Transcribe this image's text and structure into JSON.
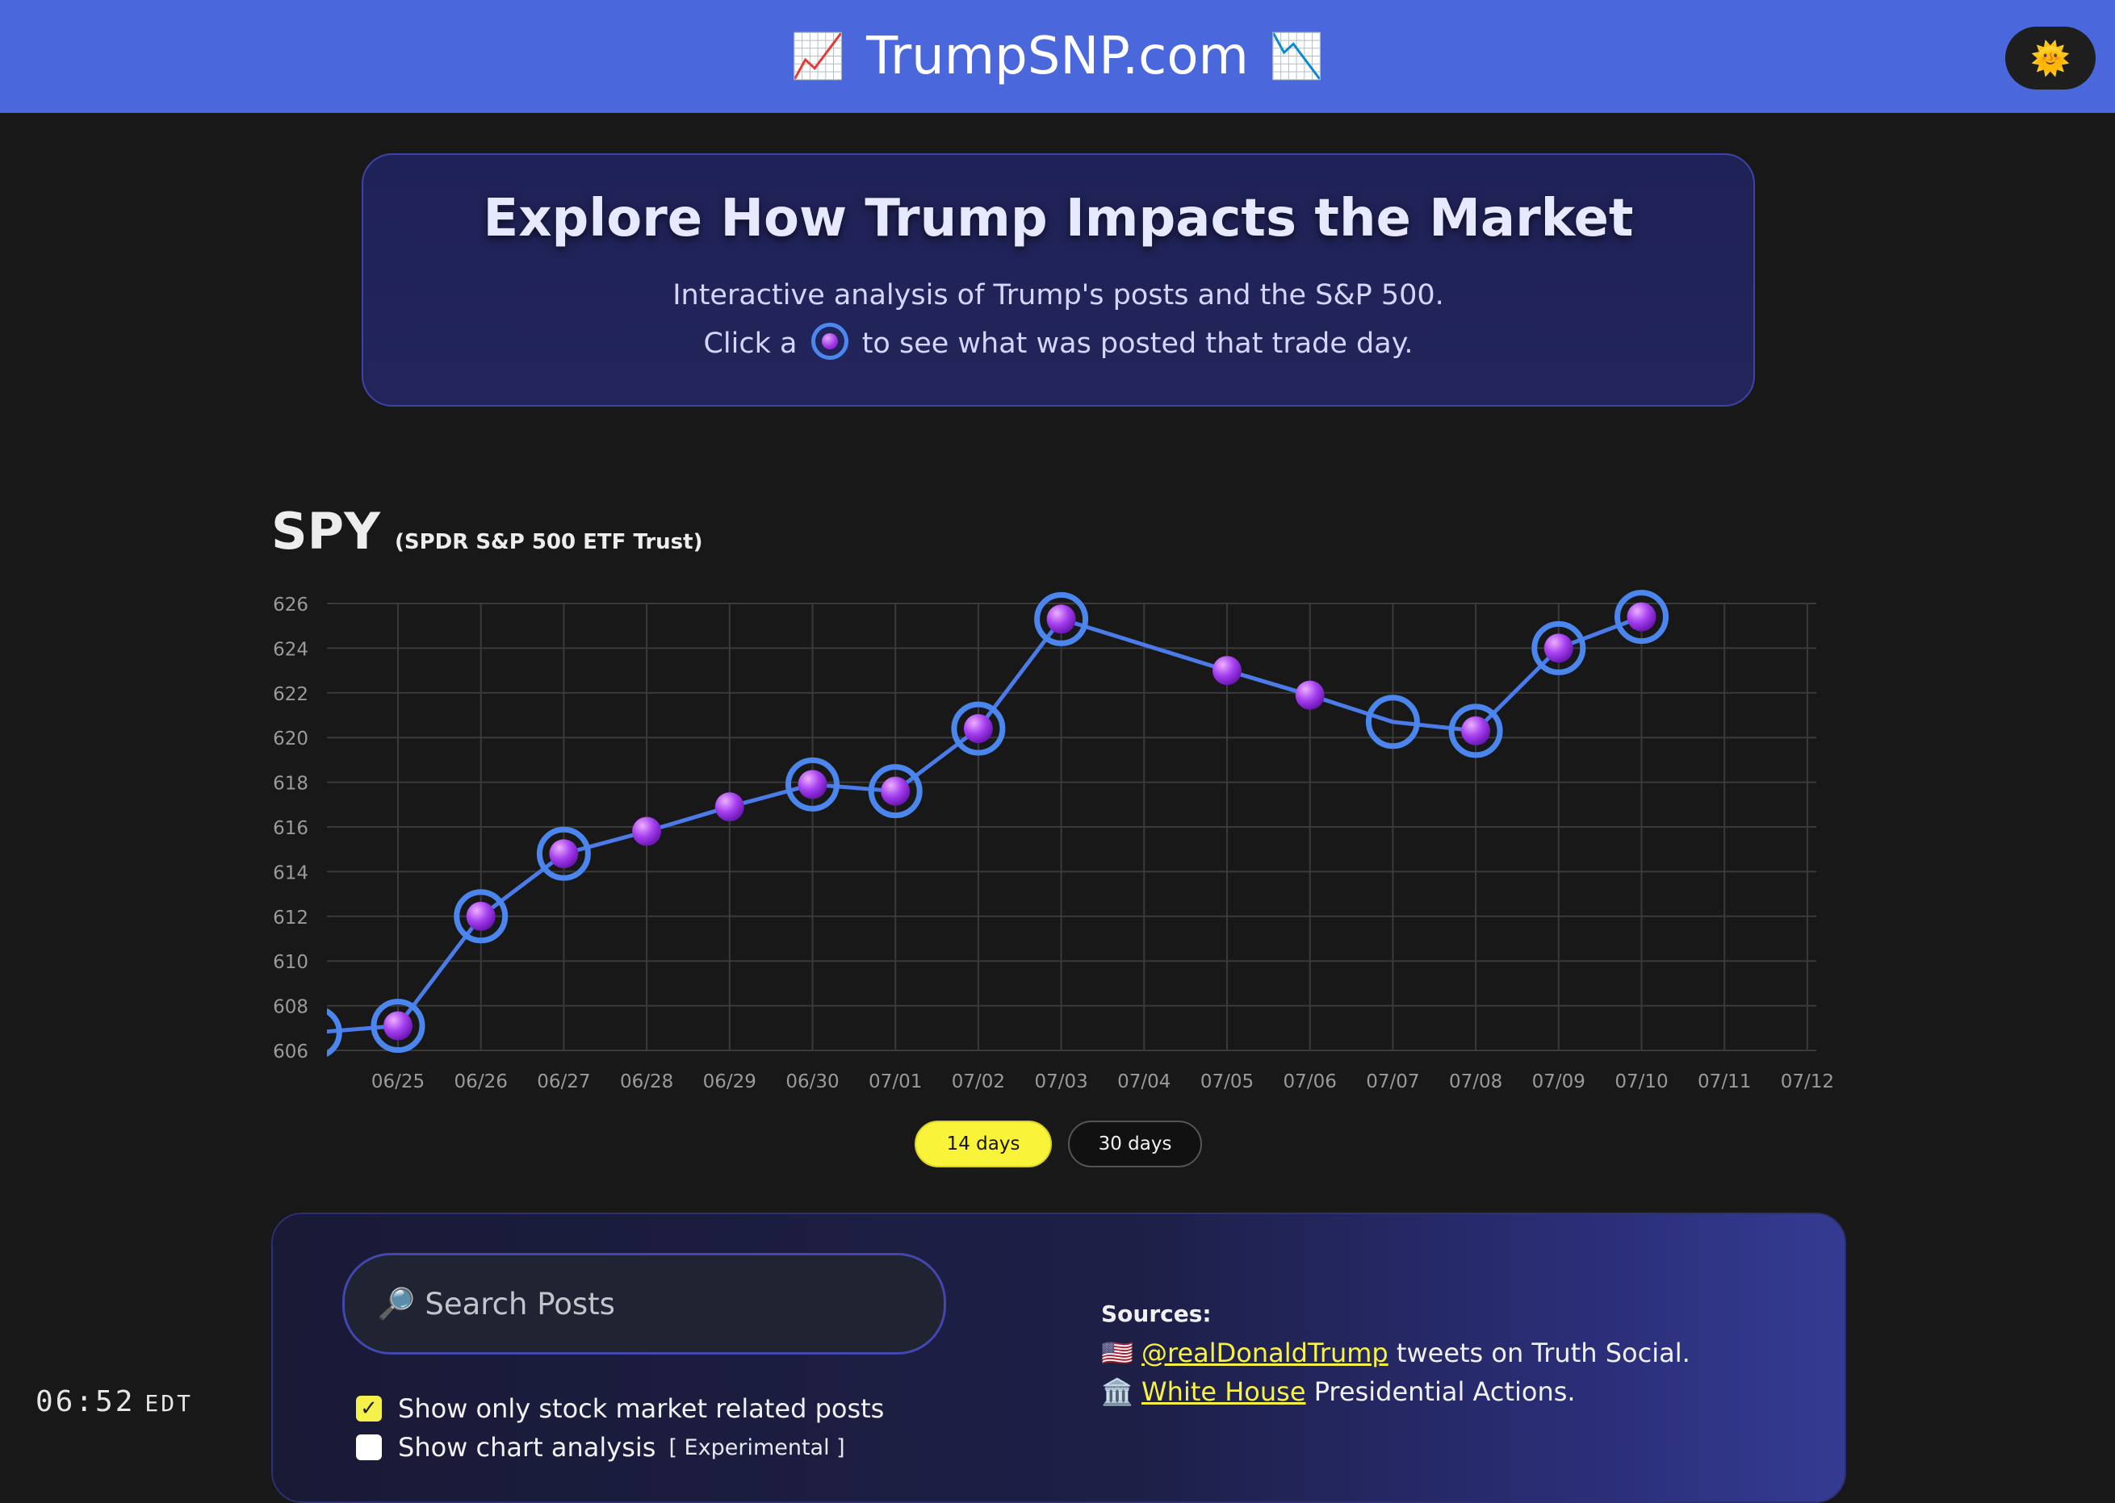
{
  "header": {
    "brand": "TrumpSNP.com",
    "left_icon": "chart-increasing-icon",
    "right_icon": "chart-decreasing-icon",
    "theme_toggle_icon": "sun-icon"
  },
  "hero": {
    "title": "Explore How Trump Impacts the Market",
    "line1": "Interactive analysis of Trump's posts and the S&P 500.",
    "line2_before": "Click a",
    "line2_after": "to see what was posted that trade day."
  },
  "chart_header": {
    "ticker": "SPY",
    "fund_name": "(SPDR S&P 500 ETF Trust)"
  },
  "chart_data": {
    "type": "line",
    "x_labels": [
      "06/25",
      "06/26",
      "06/27",
      "06/28",
      "06/29",
      "06/30",
      "07/01",
      "07/02",
      "07/03",
      "07/04",
      "07/05",
      "07/06",
      "07/07",
      "07/08",
      "07/09",
      "07/10",
      "07/11",
      "07/12"
    ],
    "ylim": [
      606,
      626
    ],
    "y_ticks": [
      626,
      624,
      622,
      620,
      618,
      616,
      614,
      612,
      610,
      608,
      606
    ],
    "grid": true,
    "series": [
      {
        "points": [
          {
            "x": "06/24",
            "y": 606.8,
            "has_posts": true,
            "has_dot": false
          },
          {
            "x": "06/25",
            "y": 607.1,
            "has_posts": true,
            "has_dot": true
          },
          {
            "x": "06/26",
            "y": 612.0,
            "has_posts": true,
            "has_dot": true
          },
          {
            "x": "06/27",
            "y": 614.8,
            "has_posts": true,
            "has_dot": true
          },
          {
            "x": "06/28",
            "y": 615.8,
            "has_posts": false,
            "has_dot": true
          },
          {
            "x": "06/29",
            "y": 616.9,
            "has_posts": false,
            "has_dot": true
          },
          {
            "x": "06/30",
            "y": 617.9,
            "has_posts": true,
            "has_dot": true
          },
          {
            "x": "07/01",
            "y": 617.6,
            "has_posts": true,
            "has_dot": true
          },
          {
            "x": "07/02",
            "y": 620.4,
            "has_posts": true,
            "has_dot": true
          },
          {
            "x": "07/03",
            "y": 625.3,
            "has_posts": true,
            "has_dot": true
          },
          {
            "x": "07/05",
            "y": 623.0,
            "has_posts": false,
            "has_dot": true
          },
          {
            "x": "07/06",
            "y": 621.9,
            "has_posts": false,
            "has_dot": true
          },
          {
            "x": "07/07",
            "y": 620.7,
            "has_posts": true,
            "has_dot": false
          },
          {
            "x": "07/08",
            "y": 620.3,
            "has_posts": true,
            "has_dot": true
          },
          {
            "x": "07/09",
            "y": 624.0,
            "has_posts": true,
            "has_dot": true
          },
          {
            "x": "07/10",
            "y": 625.4,
            "has_posts": true,
            "has_dot": true
          }
        ]
      }
    ],
    "colors": {
      "line": "#4b7be8",
      "ring": "#4b86ee",
      "dot": "#a640f0",
      "grid": "#3a3a3a",
      "tick": "#9a9a9a"
    }
  },
  "range_toggle": {
    "options": [
      "14 days",
      "30 days"
    ],
    "selected": "14 days"
  },
  "panel": {
    "search_placeholder": "Search Posts",
    "search_icon": "magnifier-icon",
    "option1": "Show only stock market related posts",
    "option1_checked": true,
    "option2": "Show chart analysis",
    "option2_checked": false,
    "option2_tag": "[ Experimental ]",
    "sources_head": "Sources:",
    "source1_link": "@realDonaldTrump",
    "source1_text": "tweets on Truth Social.",
    "source2_link": "White House",
    "source2_text": "Presidential Actions."
  },
  "clock": {
    "time": "06:52",
    "tz": "EDT"
  },
  "accent": {
    "header": "#4a67dc",
    "highlight": "#f9f33a"
  }
}
